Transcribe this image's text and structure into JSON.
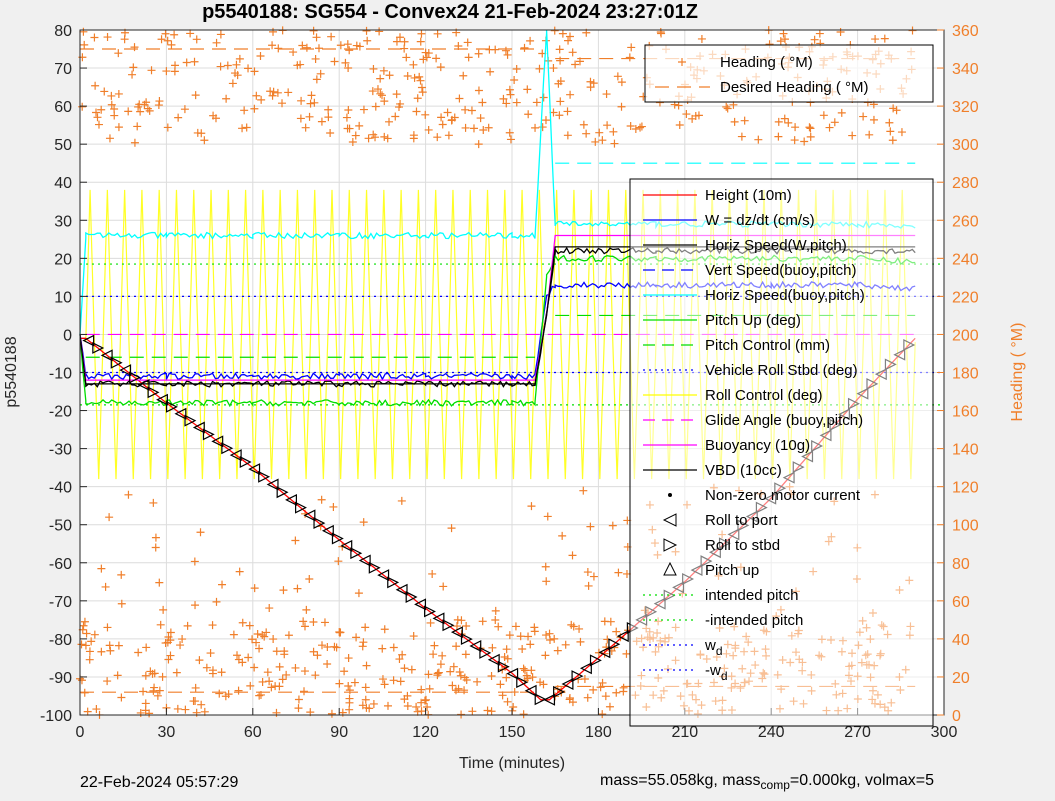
{
  "chart_data": {
    "type": "line",
    "title": "p5540188: SG554 - Convex24 21-Feb-2024 23:27:01Z",
    "xlabel": "Time (minutes)",
    "ylabel": "p5540188",
    "y2label": "Heading ( °M)",
    "xlim": [
      0,
      300
    ],
    "ylim": [
      -100,
      80
    ],
    "y2lim": [
      0,
      360
    ],
    "xticks": [
      0,
      30,
      60,
      90,
      120,
      150,
      180,
      210,
      240,
      270,
      300
    ],
    "yticks": [
      -100,
      -90,
      -80,
      -70,
      -60,
      -50,
      -40,
      -30,
      -20,
      -10,
      0,
      10,
      20,
      30,
      40,
      50,
      60,
      70,
      80
    ],
    "y2ticks": [
      0,
      20,
      40,
      60,
      80,
      100,
      120,
      140,
      160,
      180,
      200,
      220,
      240,
      260,
      280,
      300,
      320,
      340,
      360
    ],
    "grid": true,
    "colors": {
      "orange": "#f07f2a",
      "cyan": "#00ffff",
      "blue": "#0000ff",
      "green": "#00dd00",
      "yellow": "#ffff00",
      "magenta": "#ff00ff",
      "red": "#ff0000",
      "black": "#000000"
    },
    "legend_top": {
      "position": "top-right",
      "entries": [
        "Heading ( °M)",
        "Desired Heading ( °M)"
      ]
    },
    "legend_main": {
      "position": "right",
      "entries": [
        "Height (10m)",
        "W = dz/dt (cm/s)",
        "Horiz Speed(W,pitch)",
        "Vert Speed(buoy,pitch)",
        "Horiz Speed(buoy,pitch)",
        "Pitch Up (deg)",
        "Pitch Control (mm)",
        "Vehicle Roll Stbd (deg)",
        "Roll Control (deg)",
        "Glide Angle (buoy,pitch)",
        "Buoyancy (10g)",
        "VBD (10cc)",
        "Non-zero motor current",
        "Roll to port",
        "Roll to stbd",
        "Pitch up",
        "intended pitch",
        "-intended pitch",
        "w",
        "-w"
      ],
      "subscripts": {
        "18": "d",
        "19": "d"
      }
    },
    "series": [
      {
        "name": "Height (10m)",
        "color": "#ff0000",
        "x": [
          0,
          2,
          30,
          60,
          90,
          120,
          150,
          160,
          163,
          180,
          210,
          240,
          270,
          290
        ],
        "y": [
          -1,
          -1,
          -18,
          -35,
          -54,
          -72,
          -89,
          -96,
          -96,
          -85,
          -65,
          -43,
          -17,
          -1
        ]
      },
      {
        "name": "W = dz/dt (cm/s)",
        "color": "#0000ff",
        "x": [
          0,
          2,
          30,
          60,
          90,
          120,
          150,
          158,
          162,
          165,
          200,
          240,
          270,
          290
        ],
        "y": [
          0,
          -11,
          -11,
          -11,
          -11,
          -11,
          -11,
          -11,
          10,
          13,
          13,
          13,
          13,
          12
        ]
      },
      {
        "name": "Horiz Speed(W,pitch)",
        "color": "#000000",
        "x": [
          0,
          2,
          30,
          60,
          90,
          120,
          150,
          158,
          162,
          165,
          200,
          240,
          270,
          290
        ],
        "y": [
          0,
          -13,
          -13,
          -13,
          -13,
          -13,
          -13,
          -13,
          5,
          22,
          22,
          22,
          22,
          22
        ]
      },
      {
        "name": "Horiz Speed(buoy,pitch)",
        "color": "#00ffff",
        "x": [
          0,
          2,
          30,
          60,
          90,
          120,
          150,
          158,
          162,
          165,
          200,
          240,
          270,
          290
        ],
        "y": [
          0,
          26,
          26,
          26,
          26,
          26,
          26,
          26,
          80,
          29,
          29,
          29,
          29,
          28
        ]
      },
      {
        "name": "Pitch Up (deg)",
        "color": "#00dd00",
        "x": [
          0,
          2,
          30,
          60,
          90,
          120,
          150,
          158,
          162,
          165,
          200,
          240,
          270,
          290
        ],
        "y": [
          0,
          -18,
          -18,
          -18,
          -18,
          -18,
          -18,
          -18,
          15,
          20,
          20,
          20,
          20,
          19
        ]
      },
      {
        "name": "Buoyancy (10g)",
        "color": "#ff00ff",
        "x": [
          0,
          2,
          30,
          60,
          90,
          120,
          150,
          158,
          162,
          165,
          200,
          240,
          270,
          290
        ],
        "y": [
          0,
          -12,
          -12,
          -12,
          -12,
          -12,
          -12,
          -12,
          5,
          26,
          26,
          26,
          26,
          26
        ]
      },
      {
        "name": "VBD (10cc)",
        "color": "#000000",
        "x": [
          0,
          2,
          30,
          60,
          90,
          120,
          150,
          158,
          162,
          165,
          200,
          240,
          270,
          290
        ],
        "y": [
          0,
          -13,
          -13,
          -13,
          -13,
          -13,
          -13,
          -13,
          5,
          23,
          23,
          23,
          23,
          23
        ]
      }
    ],
    "reference_lines": [
      {
        "name": "intended pitch",
        "color": "#00dd00",
        "y": [
          18.5
        ]
      },
      {
        "name": "-intended pitch",
        "color": "#00dd00",
        "y": [
          -18.5
        ]
      },
      {
        "name": "w",
        "color": "#0000ff",
        "y": [
          10
        ]
      },
      {
        "name": "-w",
        "color": "#0000ff",
        "y": [
          -10
        ]
      }
    ]
  },
  "footer": {
    "date": "22-Feb-2024 05:57:29",
    "mass_prefix": "mass=55.058kg, mass",
    "mass_sub": "comp",
    "mass_suffix": "=0.000kg, volmax=5"
  }
}
